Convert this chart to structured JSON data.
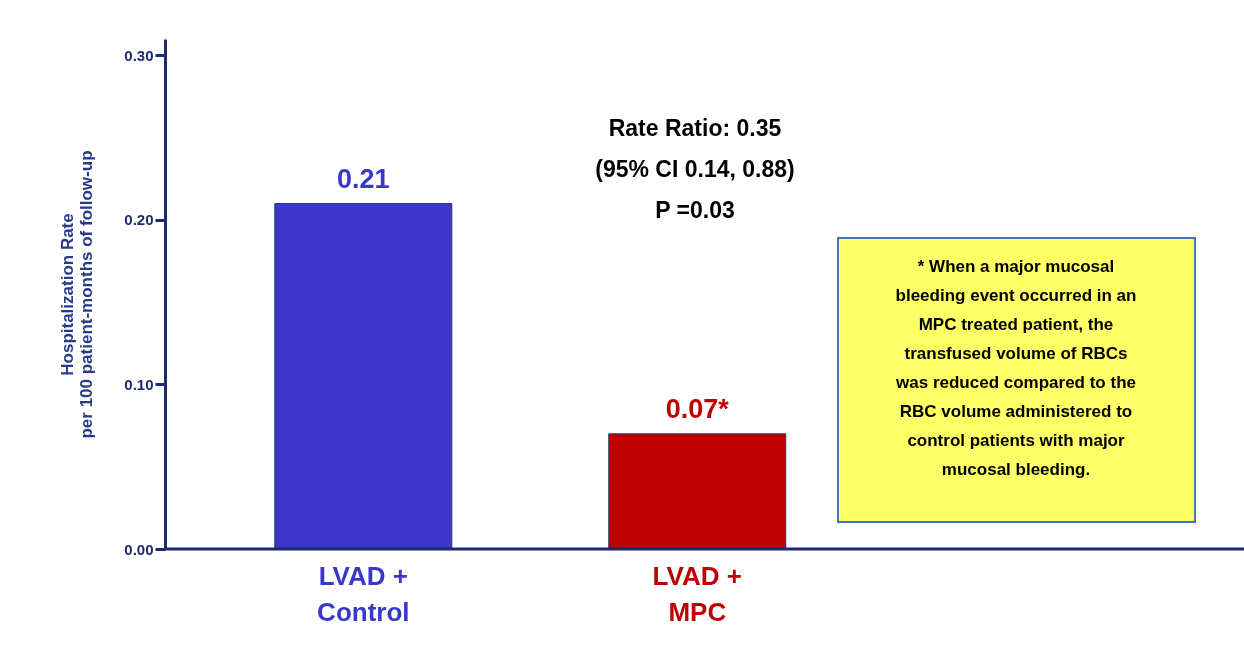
{
  "chart_data": {
    "type": "bar",
    "ylabel": "Hospitalization Rate\nper 100 patient-months of follow-up",
    "categories": [
      "LVAD + Control",
      "LVAD + MPC"
    ],
    "values": [
      0.21,
      0.07
    ],
    "colors": [
      "#3c37cc",
      "#c00000"
    ],
    "value_labels": [
      "0.21",
      "0.07*"
    ],
    "ylim": [
      0,
      0.31
    ],
    "yticks": [
      {
        "value": 0,
        "label": "0.00"
      },
      {
        "value": 0.1,
        "label": "0.10"
      },
      {
        "value": 0.2,
        "label": "0.20"
      },
      {
        "value": 0.3,
        "label": "0.30"
      }
    ],
    "annotations": [
      "Rate Ratio: 0.35\n(95% CI 0.14, 0.88)\nP =0.03",
      "* When a major mucosal\nbleeding event occurred in an\nMPC treated patient, the\ntransfused volume of RBCs\nwas reduced compared to the\nRBC volume administered to\ncontrol patients with major\nmucosal bleeding."
    ]
  }
}
